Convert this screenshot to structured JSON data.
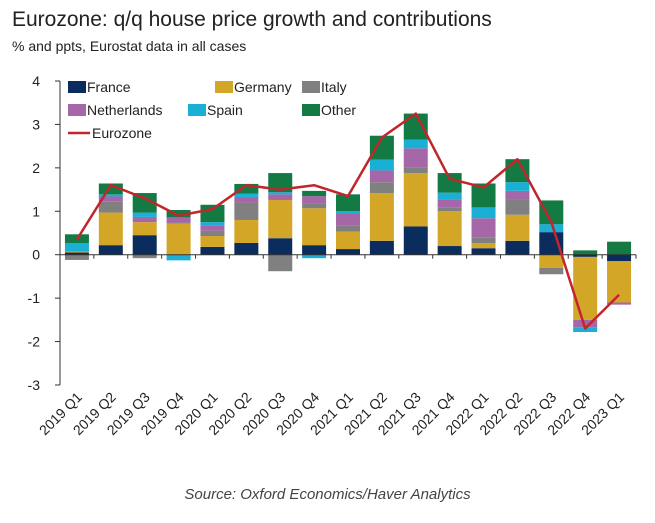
{
  "chart_data": {
    "type": "bar",
    "title": "Eurozone: q/q house price growth and contributions",
    "subtitle": "% and ppts, Eurostat data in all cases",
    "source": "Source: Oxford Economics/Haver Analytics",
    "xlabel": "",
    "ylabel": "",
    "ylim": [
      -3,
      4
    ],
    "yticks": [
      "4",
      "3",
      "2",
      "1",
      "0",
      "-1",
      "-2",
      "-3"
    ],
    "grid": false,
    "legend_position": "top-left",
    "categories": [
      "2019 Q1",
      "2019 Q2",
      "2019 Q3",
      "2019 Q4",
      "2020 Q1",
      "2020 Q2",
      "2020 Q3",
      "2020 Q4",
      "2021 Q1",
      "2021 Q2",
      "2021 Q3",
      "2021 Q4",
      "2022 Q1",
      "2022 Q2",
      "2022 Q3",
      "2022 Q4",
      "2023 Q1"
    ],
    "series": [
      {
        "name": "France",
        "color": "#0b2d5e",
        "values": [
          0.05,
          0.22,
          0.45,
          0.0,
          0.18,
          0.27,
          0.38,
          0.22,
          0.13,
          0.32,
          0.65,
          0.2,
          0.15,
          0.32,
          0.52,
          -0.05,
          -0.15
        ]
      },
      {
        "name": "Germany",
        "color": "#d4a628",
        "values": [
          0.02,
          0.75,
          0.3,
          0.72,
          0.25,
          0.53,
          0.88,
          0.85,
          0.4,
          1.1,
          1.23,
          0.8,
          0.12,
          0.6,
          -0.3,
          -1.45,
          -0.95
        ]
      },
      {
        "name": "Italy",
        "color": "#808080",
        "values": [
          -0.12,
          0.25,
          -0.08,
          0.02,
          0.12,
          0.4,
          -0.38,
          0.1,
          0.15,
          0.25,
          0.12,
          0.08,
          0.12,
          0.35,
          -0.15,
          0.0,
          0.0
        ]
      },
      {
        "name": "Netherlands",
        "color": "#a567a8",
        "values": [
          0.0,
          0.12,
          0.12,
          0.12,
          0.12,
          0.13,
          0.13,
          0.18,
          0.27,
          0.27,
          0.45,
          0.2,
          0.45,
          0.2,
          0.0,
          -0.18,
          -0.05
        ]
      },
      {
        "name": "Spain",
        "color": "#1aafd4",
        "values": [
          0.2,
          0.05,
          0.1,
          -0.13,
          0.08,
          0.08,
          0.05,
          -0.08,
          0.05,
          0.25,
          0.2,
          0.15,
          0.25,
          0.2,
          0.18,
          -0.1,
          0.0
        ]
      },
      {
        "name": "Other",
        "color": "#147a44",
        "values": [
          0.2,
          0.25,
          0.45,
          0.17,
          0.4,
          0.22,
          0.44,
          0.12,
          0.39,
          0.55,
          0.6,
          0.45,
          0.55,
          0.53,
          0.55,
          0.1,
          0.3
        ]
      }
    ],
    "line": {
      "name": "Eurozone",
      "color": "#c0262c",
      "values": [
        0.35,
        1.6,
        1.3,
        0.9,
        1.05,
        1.6,
        1.5,
        1.6,
        1.35,
        2.7,
        3.25,
        1.75,
        1.55,
        2.2,
        0.75,
        -1.7,
        -0.92
      ]
    }
  }
}
